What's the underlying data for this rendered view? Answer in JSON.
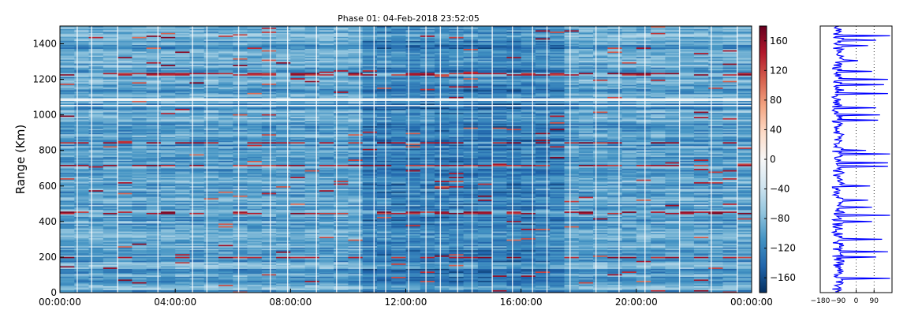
{
  "chart_data": [
    {
      "type": "heatmap",
      "title": "Phase 01: 04-Feb-2018 23:52:05",
      "xlabel": "",
      "ylabel": "Range (Km)",
      "x_tick_labels": [
        "00:00:00",
        "04:00:00",
        "08:00:00",
        "12:00:00",
        "16:00:00",
        "20:00:00",
        "00:00:00"
      ],
      "x_range_hours": [
        0,
        24
      ],
      "y_ticks": [
        0,
        200,
        400,
        600,
        800,
        1000,
        1200,
        1400
      ],
      "ylim": [
        0,
        1500
      ],
      "grid": false,
      "colormap": "RdBu_r",
      "background_level": -95,
      "features": {
        "white_horizontal_bands_km": [
          1050,
          1083
        ],
        "red_horizontal_bands_km": [
          712,
          1225,
          195,
          445,
          840
        ],
        "white_vertical_lines_hours": [
          0.6,
          1.1,
          2.0,
          3.4,
          4.6,
          5.1,
          6.2,
          7.3,
          7.9,
          8.9,
          9.6,
          10.4,
          10.9,
          11.3,
          12.1,
          12.7,
          13.2,
          13.8,
          14.3,
          15.0,
          15.7,
          16.4,
          16.9,
          17.7,
          18.6,
          19.4,
          20.3,
          21.5,
          22.6,
          23.5
        ]
      }
    },
    {
      "type": "colorbar",
      "range": [
        -180,
        180
      ],
      "tick_values": [
        -160,
        -120,
        -80,
        -40,
        0,
        40,
        80,
        120,
        160
      ],
      "tick_labels": [
        "−160",
        "−120",
        "−80",
        "−40",
        "0",
        "40",
        "80",
        "120",
        "160"
      ]
    },
    {
      "type": "line",
      "xlim": [
        -180,
        180
      ],
      "ylim": [
        0,
        1500
      ],
      "x_tick_values": [
        -180,
        -90,
        0,
        90
      ],
      "x_tick_labels": [
        "−180",
        "−90",
        "0",
        "90"
      ],
      "vertical_dotted_lines_at": [
        0,
        90
      ],
      "color": "#0000ff",
      "profile_step_km": 5,
      "baseline_phase": -90,
      "spikes": [
        {
          "range_km": 1445,
          "value": 170
        },
        {
          "range_km": 1420,
          "value": 100
        },
        {
          "range_km": 1390,
          "value": 60
        },
        {
          "range_km": 1305,
          "value": 10
        },
        {
          "range_km": 1245,
          "value": 80
        },
        {
          "range_km": 1200,
          "value": 160
        },
        {
          "range_km": 1170,
          "value": 140
        },
        {
          "range_km": 1120,
          "value": 160
        },
        {
          "range_km": 1040,
          "value": 100
        },
        {
          "range_km": 1000,
          "value": 120
        },
        {
          "range_km": 970,
          "value": 110
        },
        {
          "range_km": 800,
          "value": 50
        },
        {
          "range_km": 780,
          "value": 170
        },
        {
          "range_km": 730,
          "value": 160
        },
        {
          "range_km": 710,
          "value": 160
        },
        {
          "range_km": 600,
          "value": 70
        },
        {
          "range_km": 520,
          "value": 60
        },
        {
          "range_km": 480,
          "value": 80
        },
        {
          "range_km": 435,
          "value": 170
        },
        {
          "range_km": 400,
          "value": 80
        },
        {
          "range_km": 300,
          "value": 130
        },
        {
          "range_km": 230,
          "value": 160
        },
        {
          "range_km": 200,
          "value": 100
        },
        {
          "range_km": 80,
          "value": 170
        }
      ]
    }
  ]
}
